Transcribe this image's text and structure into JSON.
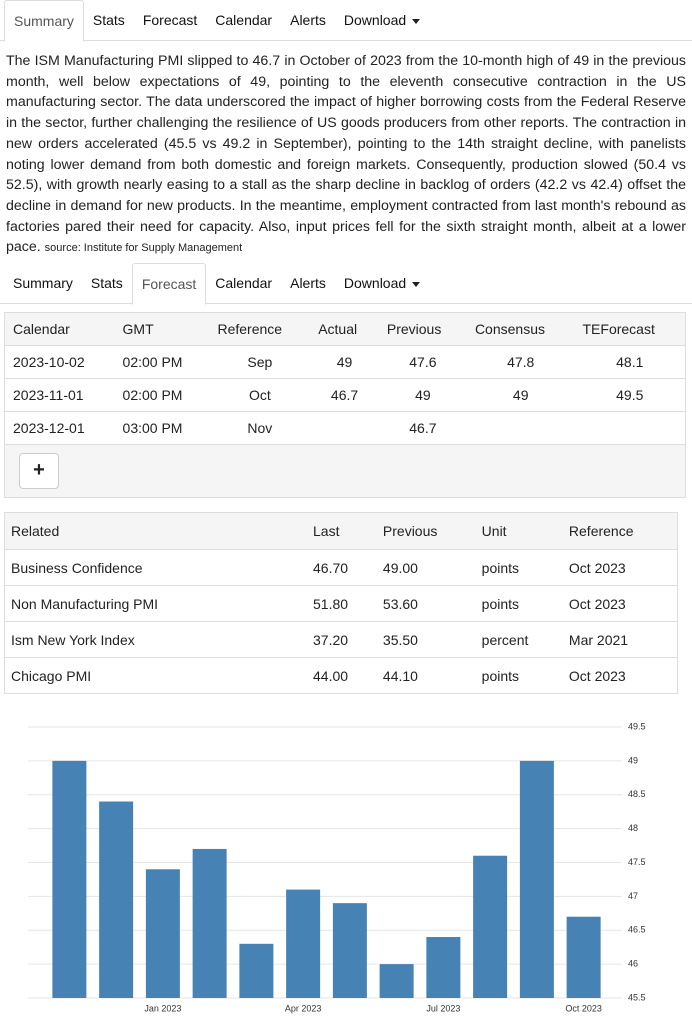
{
  "tabs_top": [
    "Summary",
    "Stats",
    "Forecast",
    "Calendar",
    "Alerts",
    "Download"
  ],
  "description": "The ISM Manufacturing PMI slipped to 46.7 in October of 2023 from the 10-month high of 49 in the previous month, well below expectations of 49, pointing to the eleventh consecutive contraction in the US manufacturing sector. The data underscored the impact of higher borrowing costs from the Federal Reserve in the sector, further challenging the resilience of US goods producers from other reports. The contraction in new orders accelerated (45.5 vs 49.2 in September), pointing to the 14th straight decline, with panelists noting lower demand from both domestic and foreign markets. Consequently, production slowed (50.4 vs 52.5), with growth nearly easing to a stall as the sharp decline in backlog of orders (42.2 vs 42.4) offset the decline in demand for new products. In the meantime, employment contracted from last month's rebound as factories pared their need for capacity. Also, input prices fell for the sixth straight month, albeit at a lower pace.",
  "source": "source: Institute for Supply Management",
  "tabs_bottom": [
    "Summary",
    "Stats",
    "Forecast",
    "Calendar",
    "Alerts",
    "Download"
  ],
  "forecast_table": {
    "headers": [
      "Calendar",
      "GMT",
      "Reference",
      "Actual",
      "Previous",
      "Consensus",
      "TEForecast"
    ],
    "rows": [
      [
        "2023-10-02",
        "02:00 PM",
        "Sep",
        "49",
        "47.6",
        "47.8",
        "48.1"
      ],
      [
        "2023-11-01",
        "02:00 PM",
        "Oct",
        "46.7",
        "49",
        "49",
        "49.5"
      ],
      [
        "2023-12-01",
        "03:00 PM",
        "Nov",
        null,
        "46.7",
        null,
        null
      ]
    ],
    "button": "+"
  },
  "related_table": {
    "headers": [
      "Related",
      "Last",
      "Previous",
      "Unit",
      "Reference"
    ],
    "rows": [
      [
        "Business Confidence",
        "46.70",
        "49.00",
        "points",
        "Oct 2023"
      ],
      [
        "Non Manufacturing PMI",
        "51.80",
        "53.60",
        "points",
        "Oct 2023"
      ],
      [
        "Ism New York Index",
        "37.20",
        "35.50",
        "percent",
        "Mar 2021"
      ],
      [
        "Chicago PMI",
        "44.00",
        "44.10",
        "points",
        "Oct 2023"
      ]
    ]
  },
  "chart_data": {
    "type": "bar",
    "categories": [
      null,
      null,
      "Jan 2023",
      null,
      null,
      "Apr 2023",
      null,
      null,
      "Jul 2023",
      null,
      null,
      "Oct 2023"
    ],
    "values": [
      49,
      48.4,
      47.4,
      47.7,
      46.3,
      47.1,
      46.9,
      46,
      46.4,
      47.6,
      49,
      46.7
    ],
    "color": "#4682b4",
    "ylim": [
      45.5,
      49.5
    ],
    "yticks": [
      45.5,
      46,
      46.5,
      47,
      47.5,
      48,
      48.5,
      49,
      49.5
    ],
    "grid": true
  }
}
